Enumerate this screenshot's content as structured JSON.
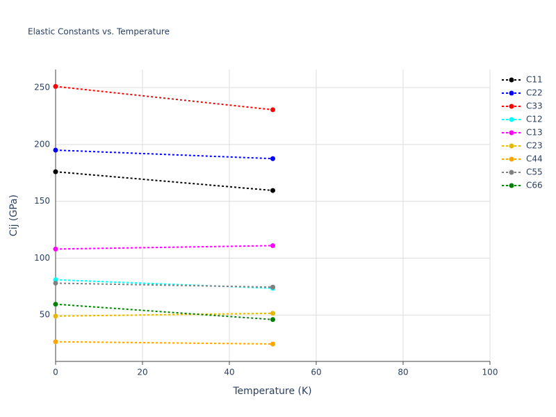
{
  "chart_data": {
    "type": "line",
    "title": "Elastic Constants vs. Temperature",
    "x_label": "Temperature (K)",
    "y_label": "Cij (GPa)",
    "x": [
      0,
      50
    ],
    "series": [
      {
        "name": "C11",
        "color": "#000000",
        "values": [
          176,
          159.5
        ]
      },
      {
        "name": "C22",
        "color": "#0000ff",
        "values": [
          195,
          187.5
        ]
      },
      {
        "name": "C33",
        "color": "#ff0000",
        "values": [
          251,
          230.5
        ]
      },
      {
        "name": "C12",
        "color": "#00ffff",
        "values": [
          81,
          73.5
        ]
      },
      {
        "name": "C13",
        "color": "#ff00ff",
        "values": [
          108,
          111
        ]
      },
      {
        "name": "C23",
        "color": "#e6b800",
        "values": [
          49,
          51.5
        ]
      },
      {
        "name": "C44",
        "color": "#ffa500",
        "values": [
          26.5,
          24.5
        ]
      },
      {
        "name": "C55",
        "color": "#808080",
        "values": [
          78,
          74.5
        ]
      },
      {
        "name": "C66",
        "color": "#008000",
        "values": [
          59.5,
          46
        ]
      }
    ],
    "xlim": [
      0,
      100
    ],
    "xticks": [
      0,
      20,
      40,
      60,
      80,
      100
    ],
    "ylim": [
      9.2,
      265.9
    ],
    "yticks": [
      50,
      100,
      150,
      200,
      250
    ],
    "grid": true,
    "legend": "right"
  }
}
